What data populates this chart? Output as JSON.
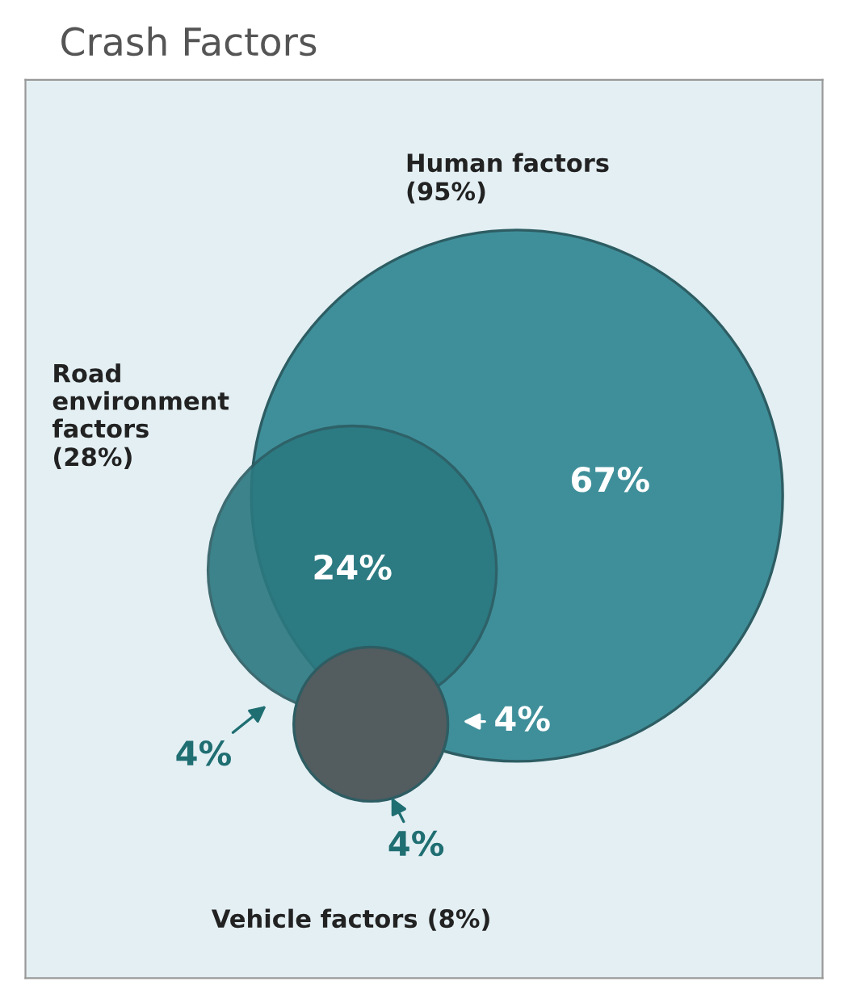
{
  "chart_data": {
    "type": "other",
    "title": "Crash Factors",
    "categories": [
      "Human factors",
      "Road\nenvironment\nfactors",
      "Vehicle factors"
    ],
    "values": [
      95,
      28,
      8
    ],
    "value_labels": [
      "(95%)",
      "(28%)",
      "(8%)"
    ],
    "colors": [
      "#3f8f9a",
      "#2b7880",
      "#535c5f"
    ],
    "annotations": [
      "67%",
      "24%",
      "4%",
      "4%",
      "4%"
    ]
  }
}
